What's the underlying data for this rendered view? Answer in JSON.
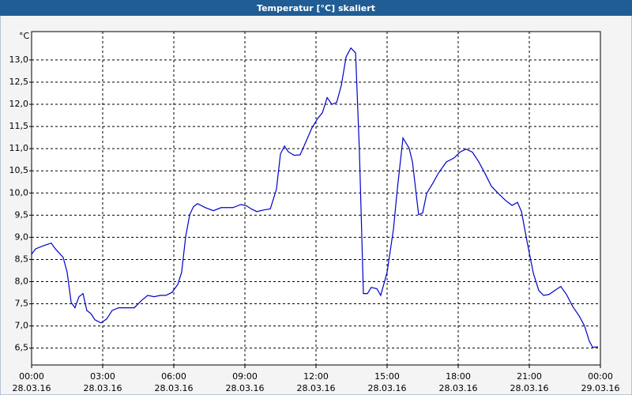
{
  "chart_data": {
    "type": "line",
    "title": "Temperatur [°C] skaliert",
    "y_unit": "°C",
    "x": [
      0,
      0.17,
      0.5,
      0.83,
      1.0,
      1.33,
      1.5,
      1.67,
      1.83,
      2.0,
      2.17,
      2.33,
      2.5,
      2.67,
      2.93,
      3.17,
      3.4,
      3.67,
      4.0,
      4.33,
      4.67,
      4.9,
      5.17,
      5.43,
      5.67,
      5.93,
      6.17,
      6.33,
      6.5,
      6.67,
      6.83,
      7.0,
      7.33,
      7.67,
      8.0,
      8.5,
      8.83,
      9.07,
      9.27,
      9.5,
      9.83,
      10.07,
      10.33,
      10.5,
      10.67,
      10.83,
      11.07,
      11.33,
      11.57,
      11.83,
      12.07,
      12.27,
      12.47,
      12.67,
      12.87,
      13.07,
      13.27,
      13.47,
      13.67,
      13.83,
      14.0,
      14.17,
      14.33,
      14.57,
      14.73,
      15.0,
      15.27,
      15.43,
      15.67,
      15.93,
      16.07,
      16.33,
      16.5,
      16.67,
      16.93,
      17.17,
      17.5,
      17.83,
      18.07,
      18.33,
      18.6,
      18.87,
      19.13,
      19.4,
      19.73,
      20.0,
      20.27,
      20.5,
      20.67,
      20.9,
      21.17,
      21.4,
      21.6,
      21.83,
      22.07,
      22.33,
      22.57,
      22.83,
      23.1,
      23.33,
      23.53,
      23.67,
      23.9
    ],
    "values": [
      8.62,
      8.74,
      8.81,
      8.87,
      8.74,
      8.55,
      8.21,
      7.53,
      7.41,
      7.66,
      7.73,
      7.35,
      7.28,
      7.14,
      7.07,
      7.16,
      7.35,
      7.41,
      7.41,
      7.41,
      7.59,
      7.69,
      7.66,
      7.69,
      7.69,
      7.76,
      7.94,
      8.21,
      9.01,
      9.51,
      9.69,
      9.76,
      9.67,
      9.6,
      9.67,
      9.67,
      9.74,
      9.71,
      9.64,
      9.58,
      9.62,
      9.64,
      10.08,
      10.88,
      11.06,
      10.93,
      10.85,
      10.86,
      11.15,
      11.47,
      11.68,
      11.81,
      12.15,
      12.0,
      12.04,
      12.43,
      13.07,
      13.27,
      13.16,
      10.97,
      7.73,
      7.73,
      7.87,
      7.84,
      7.69,
      8.21,
      9.19,
      10.08,
      11.24,
      11.01,
      10.7,
      9.51,
      9.55,
      9.99,
      10.22,
      10.45,
      10.7,
      10.79,
      10.92,
      10.99,
      10.92,
      10.7,
      10.44,
      10.15,
      9.97,
      9.83,
      9.72,
      9.79,
      9.58,
      8.92,
      8.19,
      7.8,
      7.69,
      7.71,
      7.8,
      7.89,
      7.71,
      7.44,
      7.23,
      7.0,
      6.66,
      6.52,
      6.53
    ],
    "color": "#0000c8",
    "xlim": [
      0,
      24
    ],
    "xticks": [
      {
        "value": 0,
        "label": "00:00\n28.03.16"
      },
      {
        "value": 3,
        "label": "03:00\n28.03.16"
      },
      {
        "value": 6,
        "label": "06:00\n28.03.16"
      },
      {
        "value": 9,
        "label": "09:00\n28.03.16"
      },
      {
        "value": 12,
        "label": "12:00\n28.03.16"
      },
      {
        "value": 15,
        "label": "15:00\n28.03.16"
      },
      {
        "value": 18,
        "label": "18:00\n28.03.16"
      },
      {
        "value": 21,
        "label": "21:00\n28.03.16"
      },
      {
        "value": 24,
        "label": "00:00\n29.03.16"
      }
    ],
    "ylim": [
      6.12,
      13.64
    ],
    "yticks": [
      {
        "value": 6.5,
        "label": "6,5"
      },
      {
        "value": 7,
        "label": "7,0"
      },
      {
        "value": 7.5,
        "label": "7,5"
      },
      {
        "value": 8,
        "label": "8,0"
      },
      {
        "value": 8.5,
        "label": "8,5"
      },
      {
        "value": 9,
        "label": "9,0"
      },
      {
        "value": 9.5,
        "label": "9,5"
      },
      {
        "value": 10,
        "label": "10,0"
      },
      {
        "value": 10.5,
        "label": "10,5"
      },
      {
        "value": 11,
        "label": "11,0"
      },
      {
        "value": 11.5,
        "label": "11,5"
      },
      {
        "value": 12,
        "label": "12,0"
      },
      {
        "value": 12.5,
        "label": "12,5"
      },
      {
        "value": 13,
        "label": "13,0"
      }
    ],
    "grid": true
  }
}
